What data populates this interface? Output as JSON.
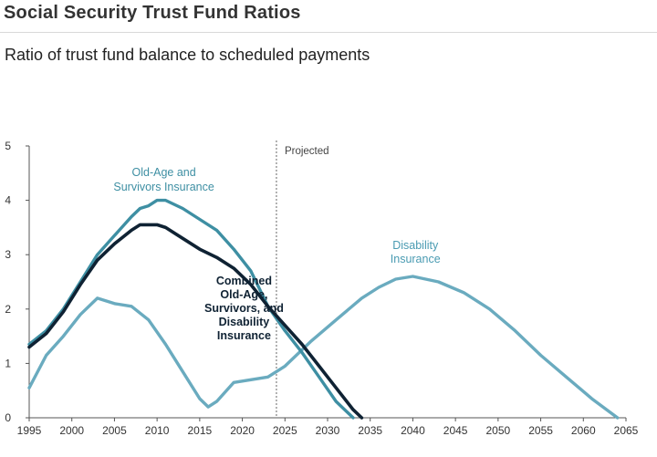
{
  "header": {
    "title": "Social Security Trust Fund Ratios",
    "subtitle": "Ratio of trust fund balance to scheduled payments"
  },
  "chart_data": {
    "type": "line",
    "title": "Social Security Trust Fund Ratios",
    "subtitle": "Ratio of trust fund balance to scheduled payments",
    "xlabel": "",
    "ylabel": "",
    "xlim": [
      1995,
      2065
    ],
    "ylim": [
      0,
      5
    ],
    "x_ticks": [
      "1995",
      "2000",
      "2005",
      "2010",
      "2015",
      "2020",
      "2025",
      "2030",
      "2035",
      "2040",
      "2045",
      "2050",
      "2055",
      "2060",
      "2065"
    ],
    "y_ticks": [
      "0",
      "1",
      "2",
      "3",
      "4",
      "5"
    ],
    "grid": false,
    "projection_marker": {
      "x": 2024,
      "label": "Projected"
    },
    "series": [
      {
        "name": "Old-Age and Survivors Insurance",
        "label_lines": [
          "Old-Age and",
          "Survivors Insurance"
        ],
        "color": "#3e8fa3",
        "x": [
          1995,
          1997,
          1999,
          2001,
          2003,
          2005,
          2007,
          2008,
          2009,
          2010,
          2011,
          2013,
          2015,
          2017,
          2019,
          2021,
          2023,
          2025,
          2027,
          2029,
          2031,
          2033
        ],
        "values": [
          1.35,
          1.6,
          2.0,
          2.5,
          3.0,
          3.35,
          3.7,
          3.85,
          3.9,
          4.0,
          4.0,
          3.85,
          3.65,
          3.45,
          3.1,
          2.7,
          2.05,
          1.6,
          1.2,
          0.75,
          0.3,
          0.0
        ]
      },
      {
        "name": "Combined Old-Age, Survivors, and Disability Insurance",
        "label_lines": [
          "Combined",
          "Old-Age,",
          "Survivors, and",
          "Disability",
          "Insurance"
        ],
        "color": "#0f2233",
        "x": [
          1995,
          1997,
          1999,
          2001,
          2003,
          2005,
          2007,
          2008,
          2009,
          2010,
          2011,
          2013,
          2015,
          2017,
          2019,
          2021,
          2023,
          2025,
          2027,
          2029,
          2031,
          2033,
          2034
        ],
        "values": [
          1.3,
          1.55,
          1.95,
          2.45,
          2.9,
          3.2,
          3.45,
          3.55,
          3.55,
          3.55,
          3.5,
          3.3,
          3.1,
          2.95,
          2.75,
          2.45,
          2.05,
          1.7,
          1.35,
          0.95,
          0.55,
          0.15,
          0.0
        ]
      },
      {
        "name": "Disability Insurance",
        "label_lines": [
          "Disability",
          "Insurance"
        ],
        "color": "#6aabbf",
        "x": [
          1995,
          1997,
          1999,
          2001,
          2003,
          2005,
          2007,
          2009,
          2011,
          2013,
          2015,
          2016,
          2017,
          2019,
          2021,
          2023,
          2025,
          2028,
          2031,
          2034,
          2036,
          2038,
          2040,
          2043,
          2046,
          2049,
          2052,
          2055,
          2058,
          2061,
          2064
        ],
        "values": [
          0.55,
          1.15,
          1.5,
          1.9,
          2.2,
          2.1,
          2.05,
          1.8,
          1.35,
          0.85,
          0.35,
          0.2,
          0.3,
          0.65,
          0.7,
          0.75,
          0.95,
          1.4,
          1.8,
          2.2,
          2.4,
          2.55,
          2.6,
          2.5,
          2.3,
          2.0,
          1.6,
          1.15,
          0.75,
          0.35,
          0.0
        ]
      }
    ]
  }
}
